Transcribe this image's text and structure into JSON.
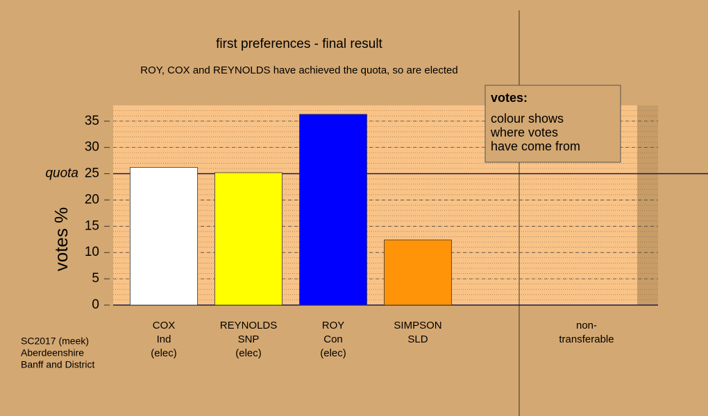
{
  "chart_data": {
    "type": "bar",
    "title": "first preferences - final result",
    "subtitle": "ROY, COX and REYNOLDS have achieved the quota, so are elected",
    "y_label": "votes %",
    "categories": [
      "COX",
      "REYNOLDS",
      "ROY",
      "SIMPSON",
      "non-"
    ],
    "parties": [
      "Ind",
      "SNP",
      "Con",
      "SLD",
      "transferable"
    ],
    "status": [
      "(elec)",
      "(elec)",
      "(elec)",
      null,
      null
    ],
    "values": [
      26.2,
      25.2,
      36.3,
      12.4,
      null
    ],
    "colors": [
      "#ffffff",
      "#ffff00",
      "#0000ff",
      "#ff9409",
      null
    ],
    "ylim": [
      0,
      38
    ],
    "yticks": [
      0,
      5,
      10,
      15,
      20,
      25,
      30,
      35
    ],
    "quota": {
      "value": 25,
      "label": "quota"
    },
    "grid": true,
    "legend": {
      "title": "votes:",
      "lines": [
        "colour shows",
        "where votes",
        "have come from"
      ]
    },
    "notes": [
      "SC2017 (meek)",
      "Aberdeenshire",
      "Banff and District"
    ]
  }
}
